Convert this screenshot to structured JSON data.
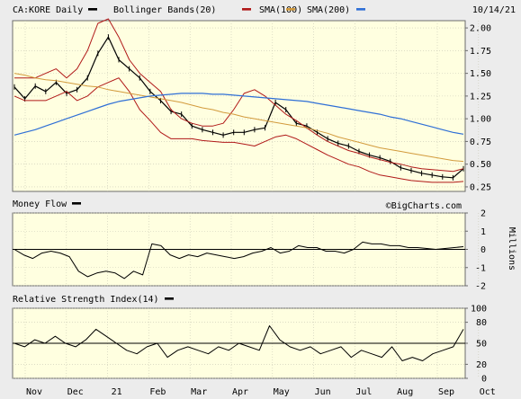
{
  "header": {
    "symbol_label": "CA:KORE Daily",
    "bollinger_label": "Bollinger Bands(20)",
    "sma100_label": "SMA(100)",
    "sma200_label": "SMA(200)",
    "date": "10/14/21"
  },
  "colors": {
    "price": "#000000",
    "bollinger": "#b01818",
    "sma100": "#d29a3c",
    "sma200": "#2f6fd6",
    "panel_bg": "#ffffe0",
    "outer_bg": "#ececec"
  },
  "watermark": "©BigCharts.com",
  "x_axis_labels": [
    "Nov",
    "Dec",
    "21",
    "Feb",
    "Mar",
    "Apr",
    "May",
    "Jun",
    "Jul",
    "Aug",
    "Sep",
    "Oct"
  ],
  "chart_data": [
    {
      "type": "line",
      "panel": "price",
      "y_ticks": [
        2.0,
        1.75,
        1.5,
        1.25,
        1.0,
        0.75,
        0.5,
        0.25
      ],
      "y_tick_labels": [
        "2.00",
        "1.75",
        "1.50",
        "1.25",
        "1.00",
        "0.75",
        "0.50",
        "0.25"
      ],
      "ylim": [
        0.2,
        2.08
      ],
      "series": [
        {
          "name": "CA:KORE Daily",
          "values": [
            1.35,
            1.22,
            1.36,
            1.3,
            1.4,
            1.28,
            1.32,
            1.45,
            1.72,
            1.9,
            1.65,
            1.55,
            1.45,
            1.3,
            1.2,
            1.08,
            1.05,
            0.92,
            0.88,
            0.85,
            0.82,
            0.85,
            0.85,
            0.88,
            0.9,
            1.18,
            1.1,
            0.95,
            0.92,
            0.85,
            0.78,
            0.73,
            0.7,
            0.64,
            0.6,
            0.57,
            0.53,
            0.46,
            0.43,
            0.4,
            0.38,
            0.36,
            0.35,
            0.45
          ]
        },
        {
          "name": "Bollinger Bands(20) upper",
          "values": [
            1.45,
            1.45,
            1.45,
            1.5,
            1.55,
            1.45,
            1.55,
            1.75,
            2.05,
            2.1,
            1.9,
            1.65,
            1.5,
            1.4,
            1.3,
            1.1,
            1.0,
            0.95,
            0.92,
            0.92,
            0.95,
            1.1,
            1.28,
            1.32,
            1.25,
            1.15,
            1.05,
            0.98,
            0.9,
            0.82,
            0.75,
            0.7,
            0.65,
            0.62,
            0.58,
            0.55,
            0.52,
            0.5,
            0.47,
            0.45,
            0.44,
            0.43,
            0.42,
            0.45
          ]
        },
        {
          "name": "Bollinger Bands(20) lower",
          "values": [
            1.25,
            1.2,
            1.2,
            1.2,
            1.25,
            1.3,
            1.2,
            1.25,
            1.35,
            1.4,
            1.45,
            1.3,
            1.1,
            0.98,
            0.85,
            0.78,
            0.78,
            0.78,
            0.76,
            0.75,
            0.74,
            0.74,
            0.72,
            0.7,
            0.75,
            0.8,
            0.82,
            0.78,
            0.72,
            0.66,
            0.6,
            0.55,
            0.5,
            0.47,
            0.42,
            0.38,
            0.36,
            0.34,
            0.32,
            0.31,
            0.3,
            0.3,
            0.3,
            0.31
          ]
        },
        {
          "name": "SMA(100)",
          "values": [
            1.5,
            1.48,
            1.45,
            1.43,
            1.42,
            1.4,
            1.38,
            1.36,
            1.35,
            1.32,
            1.3,
            1.28,
            1.26,
            1.24,
            1.22,
            1.2,
            1.18,
            1.15,
            1.12,
            1.1,
            1.07,
            1.05,
            1.02,
            1.0,
            0.98,
            0.96,
            0.94,
            0.92,
            0.9,
            0.87,
            0.84,
            0.8,
            0.77,
            0.74,
            0.71,
            0.68,
            0.66,
            0.64,
            0.62,
            0.6,
            0.58,
            0.56,
            0.54,
            0.53
          ]
        },
        {
          "name": "SMA(200)",
          "values": [
            0.82,
            0.85,
            0.88,
            0.92,
            0.96,
            1.0,
            1.04,
            1.08,
            1.12,
            1.16,
            1.19,
            1.21,
            1.23,
            1.25,
            1.26,
            1.27,
            1.28,
            1.28,
            1.28,
            1.27,
            1.27,
            1.26,
            1.25,
            1.24,
            1.23,
            1.22,
            1.21,
            1.2,
            1.19,
            1.17,
            1.15,
            1.13,
            1.11,
            1.09,
            1.07,
            1.05,
            1.02,
            1.0,
            0.97,
            0.94,
            0.91,
            0.88,
            0.85,
            0.83
          ]
        }
      ]
    },
    {
      "type": "line",
      "panel": "money_flow",
      "title": "Money Flow",
      "y_ticks": [
        2,
        1,
        0,
        -1,
        -2
      ],
      "y_tick_labels": [
        "2",
        "1",
        "0",
        "-1",
        "-2"
      ],
      "ylabel": "Millions",
      "ylim": [
        -2,
        2
      ],
      "series": [
        {
          "name": "Money Flow",
          "values": [
            0.0,
            -0.3,
            -0.5,
            -0.2,
            -0.1,
            -0.2,
            -0.4,
            -1.2,
            -1.5,
            -1.3,
            -1.2,
            -1.3,
            -1.6,
            -1.2,
            -1.4,
            0.3,
            0.2,
            -0.3,
            -0.5,
            -0.3,
            -0.4,
            -0.2,
            -0.3,
            -0.4,
            -0.5,
            -0.4,
            -0.2,
            -0.1,
            0.1,
            -0.2,
            -0.1,
            0.2,
            0.1,
            0.1,
            -0.1,
            -0.1,
            -0.2,
            0.0,
            0.4,
            0.3,
            0.3,
            0.2,
            0.2,
            0.1,
            0.1,
            0.05,
            0.0,
            0.05,
            0.1,
            0.15
          ]
        }
      ]
    },
    {
      "type": "line",
      "panel": "rsi",
      "title": "Relative Strength Index(14)",
      "y_ticks": [
        100,
        80,
        50,
        20,
        0
      ],
      "y_tick_labels": [
        "100",
        "80",
        "50",
        "20",
        "0"
      ],
      "ylim": [
        0,
        100
      ],
      "series": [
        {
          "name": "Relative Strength Index(14)",
          "values": [
            50,
            45,
            55,
            50,
            60,
            50,
            45,
            55,
            70,
            60,
            50,
            40,
            35,
            45,
            50,
            30,
            40,
            45,
            40,
            35,
            45,
            40,
            50,
            45,
            40,
            75,
            55,
            45,
            40,
            45,
            35,
            40,
            45,
            30,
            40,
            35,
            30,
            45,
            25,
            30,
            25,
            35,
            40,
            45,
            70
          ]
        }
      ]
    }
  ]
}
